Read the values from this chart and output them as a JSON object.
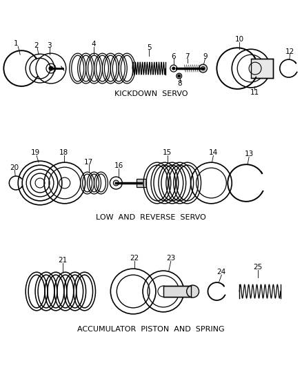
{
  "background_color": "#ffffff",
  "line_color": "#000000",
  "section_labels": {
    "kickdown": "KICKDOWN  SERVO",
    "low_reverse": "LOW  AND  REVERSE  SERVO",
    "accumulator": "ACCUMULATOR  PISTON  AND  SPRING"
  },
  "label_fontsize": 8.0,
  "number_fontsize": 7.5
}
